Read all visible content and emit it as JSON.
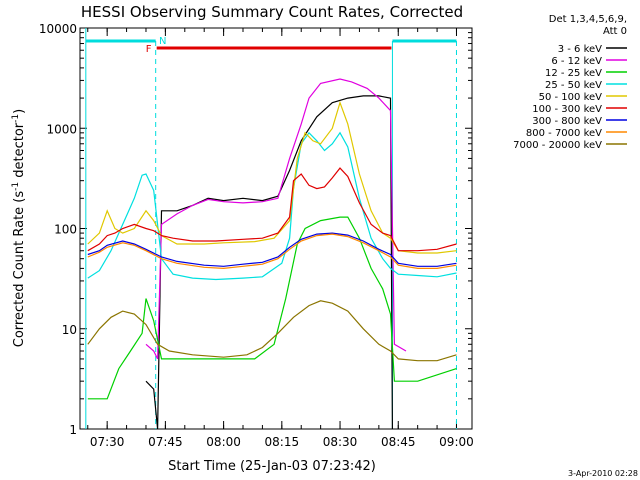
{
  "chart_data": {
    "type": "line",
    "title": "HESSI Observing Summary Count Rates, Corrected",
    "xlabel": "Start Time (25-Jan-03 07:23:42)",
    "ylabel": "Corrected Count Rate (s",
    "ylabel_sup1": "-1",
    "ylabel_mid": " detector",
    "ylabel_sup2": "-1",
    "ylabel_end": ")",
    "x_unit": "minutes since 07:23:42",
    "y_scale": "log",
    "ylim": [
      1,
      10000
    ],
    "xlim_label": [
      "07:23:42",
      "09:04"
    ],
    "x_ticks": [
      "07:30",
      "07:45",
      "08:00",
      "08:15",
      "08:30",
      "08:45",
      "09:00"
    ],
    "y_ticks": [
      "1",
      "10",
      "100",
      "1000",
      "10000"
    ],
    "legend_header": [
      "Det 1,3,4,5,6,9,",
      "Att 0"
    ],
    "legend_position": "right",
    "timestamp": "3-Apr-2010 02:28",
    "flags": [
      {
        "label": "F",
        "color": "#e00000"
      },
      {
        "label": "N",
        "color": "#00dddd"
      }
    ],
    "series": [
      {
        "name": "3 - 6 keV",
        "color": "#000000",
        "points": [
          [
            "07:40",
            3
          ],
          [
            "07:42",
            2.5
          ],
          [
            "07:43",
            1
          ],
          [
            "07:44",
            150
          ],
          [
            "07:48",
            150
          ],
          [
            "07:52",
            170
          ],
          [
            "07:56",
            200
          ],
          [
            "08:00",
            190
          ],
          [
            "08:05",
            200
          ],
          [
            "08:10",
            190
          ],
          [
            "08:14",
            210
          ],
          [
            "08:17",
            380
          ],
          [
            "08:20",
            750
          ],
          [
            "08:24",
            1300
          ],
          [
            "08:28",
            1800
          ],
          [
            "08:32",
            2000
          ],
          [
            "08:36",
            2100
          ],
          [
            "08:40",
            2100
          ],
          [
            "08:43",
            2000
          ],
          [
            "08:43.5",
            1
          ]
        ]
      },
      {
        "name": "6 - 12 keV",
        "color": "#e000e0",
        "points": [
          [
            "07:40",
            7
          ],
          [
            "07:42",
            6
          ],
          [
            "07:43",
            5
          ],
          [
            "07:44",
            110
          ],
          [
            "07:48",
            140
          ],
          [
            "07:52",
            170
          ],
          [
            "07:56",
            195
          ],
          [
            "08:00",
            185
          ],
          [
            "08:05",
            180
          ],
          [
            "08:10",
            185
          ],
          [
            "08:14",
            200
          ],
          [
            "08:17",
            500
          ],
          [
            "08:20",
            1100
          ],
          [
            "08:22",
            2000
          ],
          [
            "08:25",
            2800
          ],
          [
            "08:30",
            3100
          ],
          [
            "08:33",
            2900
          ],
          [
            "08:37",
            2500
          ],
          [
            "08:40",
            2000
          ],
          [
            "08:43",
            1500
          ],
          [
            "08:44",
            7
          ],
          [
            "08:47",
            6
          ]
        ]
      },
      {
        "name": "12 - 25 keV",
        "color": "#00d000",
        "points": [
          [
            "07:25",
            2
          ],
          [
            "07:30",
            2
          ],
          [
            "07:33",
            4
          ],
          [
            "07:36",
            6
          ],
          [
            "07:39",
            9
          ],
          [
            "07:40",
            20
          ],
          [
            "07:42",
            12
          ],
          [
            "07:44",
            5
          ],
          [
            "07:50",
            5
          ],
          [
            "08:00",
            5
          ],
          [
            "08:08",
            5
          ],
          [
            "08:13",
            7
          ],
          [
            "08:16",
            20
          ],
          [
            "08:19",
            70
          ],
          [
            "08:21",
            100
          ],
          [
            "08:25",
            120
          ],
          [
            "08:30",
            130
          ],
          [
            "08:32",
            130
          ],
          [
            "08:35",
            80
          ],
          [
            "08:38",
            40
          ],
          [
            "08:41",
            25
          ],
          [
            "08:43",
            14
          ],
          [
            "08:44",
            3
          ],
          [
            "08:50",
            3
          ],
          [
            "09:00",
            4
          ]
        ]
      },
      {
        "name": "25 - 50 keV",
        "color": "#00e0e0",
        "points": [
          [
            "07:25",
            32
          ],
          [
            "07:28",
            38
          ],
          [
            "07:31",
            60
          ],
          [
            "07:34",
            110
          ],
          [
            "07:37",
            200
          ],
          [
            "07:39",
            340
          ],
          [
            "07:40",
            350
          ],
          [
            "07:42",
            240
          ],
          [
            "07:44",
            50
          ],
          [
            "07:47",
            35
          ],
          [
            "07:52",
            32
          ],
          [
            "07:58",
            31
          ],
          [
            "08:05",
            32
          ],
          [
            "08:10",
            33
          ],
          [
            "08:15",
            45
          ],
          [
            "08:17",
            80
          ],
          [
            "08:18",
            250
          ],
          [
            "08:20",
            700
          ],
          [
            "08:22",
            900
          ],
          [
            "08:24",
            750
          ],
          [
            "08:26",
            600
          ],
          [
            "08:28",
            700
          ],
          [
            "08:30",
            900
          ],
          [
            "08:32",
            650
          ],
          [
            "08:35",
            200
          ],
          [
            "08:38",
            80
          ],
          [
            "08:41",
            50
          ],
          [
            "08:43",
            40
          ],
          [
            "08:45",
            35
          ],
          [
            "08:50",
            34
          ],
          [
            "08:55",
            33
          ],
          [
            "09:00",
            36
          ]
        ]
      },
      {
        "name": "50 - 100 keV",
        "color": "#e0c800",
        "points": [
          [
            "07:25",
            70
          ],
          [
            "07:28",
            90
          ],
          [
            "07:30",
            150
          ],
          [
            "07:32",
            100
          ],
          [
            "07:34",
            90
          ],
          [
            "07:37",
            100
          ],
          [
            "07:40",
            150
          ],
          [
            "07:42",
            120
          ],
          [
            "07:44",
            85
          ],
          [
            "07:48",
            70
          ],
          [
            "07:55",
            70
          ],
          [
            "08:00",
            72
          ],
          [
            "08:08",
            74
          ],
          [
            "08:13",
            80
          ],
          [
            "08:17",
            120
          ],
          [
            "08:19",
            500
          ],
          [
            "08:21",
            900
          ],
          [
            "08:23",
            750
          ],
          [
            "08:25",
            700
          ],
          [
            "08:28",
            1000
          ],
          [
            "08:30",
            1800
          ],
          [
            "08:32",
            1100
          ],
          [
            "08:35",
            350
          ],
          [
            "08:38",
            150
          ],
          [
            "08:41",
            90
          ],
          [
            "08:43",
            80
          ],
          [
            "08:45",
            60
          ],
          [
            "08:50",
            57
          ],
          [
            "08:55",
            57
          ],
          [
            "09:00",
            60
          ]
        ]
      },
      {
        "name": "100 - 300 keV",
        "color": "#e00000",
        "points": [
          [
            "07:25",
            60
          ],
          [
            "07:28",
            70
          ],
          [
            "07:30",
            85
          ],
          [
            "07:32",
            90
          ],
          [
            "07:34",
            100
          ],
          [
            "07:37",
            110
          ],
          [
            "07:40",
            100
          ],
          [
            "07:42",
            95
          ],
          [
            "07:44",
            85
          ],
          [
            "07:47",
            80
          ],
          [
            "07:52",
            75
          ],
          [
            "07:58",
            75
          ],
          [
            "08:05",
            78
          ],
          [
            "08:10",
            80
          ],
          [
            "08:14",
            90
          ],
          [
            "08:17",
            130
          ],
          [
            "08:18",
            300
          ],
          [
            "08:20",
            350
          ],
          [
            "08:22",
            270
          ],
          [
            "08:24",
            250
          ],
          [
            "08:26",
            260
          ],
          [
            "08:28",
            320
          ],
          [
            "08:30",
            400
          ],
          [
            "08:32",
            330
          ],
          [
            "08:35",
            180
          ],
          [
            "08:38",
            110
          ],
          [
            "08:41",
            90
          ],
          [
            "08:43",
            85
          ],
          [
            "08:45",
            60
          ],
          [
            "08:50",
            60
          ],
          [
            "08:55",
            62
          ],
          [
            "09:00",
            70
          ]
        ]
      },
      {
        "name": "300 - 800 keV",
        "color": "#0000e0",
        "points": [
          [
            "07:25",
            55
          ],
          [
            "07:28",
            60
          ],
          [
            "07:30",
            68
          ],
          [
            "07:34",
            75
          ],
          [
            "07:37",
            70
          ],
          [
            "07:40",
            62
          ],
          [
            "07:44",
            52
          ],
          [
            "07:48",
            47
          ],
          [
            "07:55",
            43
          ],
          [
            "08:00",
            42
          ],
          [
            "08:05",
            44
          ],
          [
            "08:10",
            46
          ],
          [
            "08:14",
            52
          ],
          [
            "08:17",
            65
          ],
          [
            "08:20",
            78
          ],
          [
            "08:24",
            88
          ],
          [
            "08:28",
            90
          ],
          [
            "08:32",
            86
          ],
          [
            "08:36",
            75
          ],
          [
            "08:40",
            62
          ],
          [
            "08:43",
            55
          ],
          [
            "08:45",
            45
          ],
          [
            "08:50",
            42
          ],
          [
            "08:55",
            42
          ],
          [
            "09:00",
            45
          ]
        ]
      },
      {
        "name": "800 - 7000 keV",
        "color": "#ff8800",
        "points": [
          [
            "07:25",
            52
          ],
          [
            "07:28",
            58
          ],
          [
            "07:30",
            65
          ],
          [
            "07:34",
            72
          ],
          [
            "07:37",
            68
          ],
          [
            "07:40",
            60
          ],
          [
            "07:44",
            50
          ],
          [
            "07:48",
            45
          ],
          [
            "07:55",
            41
          ],
          [
            "08:00",
            40
          ],
          [
            "08:05",
            42
          ],
          [
            "08:10",
            44
          ],
          [
            "08:14",
            50
          ],
          [
            "08:17",
            62
          ],
          [
            "08:20",
            75
          ],
          [
            "08:24",
            85
          ],
          [
            "08:28",
            88
          ],
          [
            "08:32",
            83
          ],
          [
            "08:36",
            72
          ],
          [
            "08:40",
            60
          ],
          [
            "08:43",
            52
          ],
          [
            "08:45",
            43
          ],
          [
            "08:50",
            40
          ],
          [
            "08:55",
            40
          ],
          [
            "09:00",
            43
          ]
        ]
      },
      {
        "name": "7000 - 20000 keV",
        "color": "#8b7500",
        "points": [
          [
            "07:25",
            7
          ],
          [
            "07:28",
            10
          ],
          [
            "07:31",
            13
          ],
          [
            "07:34",
            15
          ],
          [
            "07:37",
            14
          ],
          [
            "07:40",
            11
          ],
          [
            "07:43",
            7
          ],
          [
            "07:46",
            6
          ],
          [
            "07:52",
            5.5
          ],
          [
            "08:00",
            5.2
          ],
          [
            "08:06",
            5.5
          ],
          [
            "08:10",
            6.5
          ],
          [
            "08:14",
            9
          ],
          [
            "08:18",
            13
          ],
          [
            "08:22",
            17
          ],
          [
            "08:25",
            19
          ],
          [
            "08:28",
            18
          ],
          [
            "08:32",
            15
          ],
          [
            "08:36",
            10
          ],
          [
            "08:40",
            7
          ],
          [
            "08:43",
            6
          ],
          [
            "08:45",
            5
          ],
          [
            "08:50",
            4.8
          ],
          [
            "08:55",
            4.8
          ],
          [
            "09:00",
            5.5
          ]
        ]
      }
    ]
  }
}
